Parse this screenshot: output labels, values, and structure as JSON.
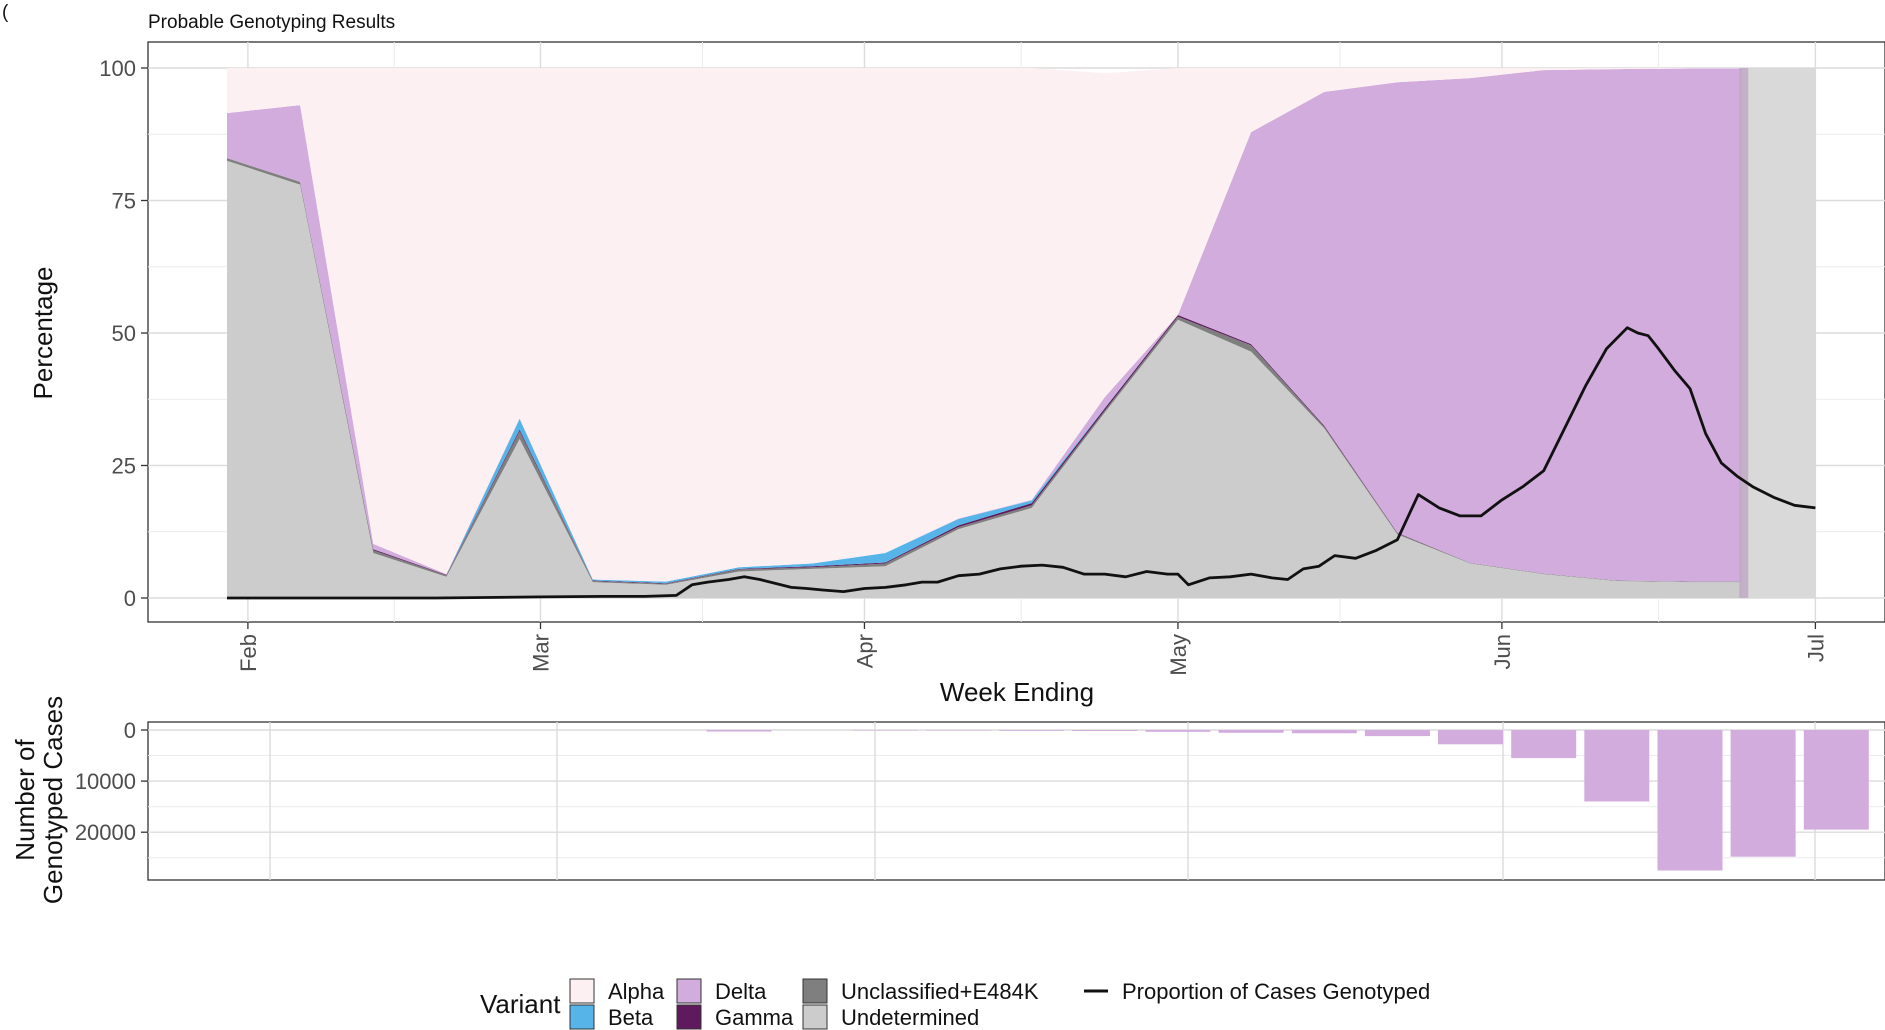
{
  "header_fragment": "(",
  "header_fragment_red": "",
  "chart_data": [
    {
      "type": "area",
      "title": "Probable Genotyping Results",
      "xlabel": "Week Ending",
      "ylabel": "Percentage",
      "ylim": [
        0,
        100
      ],
      "yticks": [
        0,
        25,
        50,
        75,
        100
      ],
      "xticks": [
        {
          "label": "Feb",
          "x": 2.0
        },
        {
          "label": "Mar",
          "x": 30.0
        },
        {
          "label": "Apr",
          "x": 61.0
        },
        {
          "label": "May",
          "x": 91.0
        },
        {
          "label": "Jun",
          "x": 122.0
        },
        {
          "label": "Jul",
          "x": 152.0
        }
      ],
      "x_unit": "days since Jan 30",
      "x": [
        0,
        7,
        14,
        21,
        28,
        35,
        42,
        49,
        56,
        63,
        70,
        77,
        84,
        91,
        98,
        105,
        112,
        119,
        126,
        133,
        140,
        145
      ],
      "series": [
        {
          "name": "Undetermined",
          "color": "#cccccc",
          "values": [
            82.5,
            78,
            8.5,
            4,
            30,
            3,
            2.5,
            5,
            5.5,
            6,
            13,
            17,
            35,
            52.5,
            46.5,
            32,
            12,
            6.5,
            4.5,
            3.2,
            3,
            3
          ]
        },
        {
          "name": "Unclassified+E484K",
          "color": "#7f7f7f",
          "values": [
            0.5,
            0.5,
            0.5,
            0.3,
            1.5,
            0.2,
            0.2,
            0.4,
            0.3,
            0.5,
            0.4,
            0.5,
            0.4,
            0.6,
            1.2,
            0.3,
            0.2,
            0.1,
            0.1,
            0.1,
            0.1,
            0.1
          ]
        },
        {
          "name": "Gamma",
          "color": "#5e1a5c",
          "values": [
            0,
            0,
            0.2,
            0.1,
            0.3,
            0.1,
            0.1,
            0.1,
            0.2,
            0.2,
            0.3,
            0.4,
            0.4,
            0.3,
            0.2,
            0.2,
            0.1,
            0,
            0,
            0,
            0,
            0
          ]
        },
        {
          "name": "Beta",
          "color": "#56b4e9",
          "values": [
            0,
            0,
            0,
            0,
            2,
            0.2,
            0.3,
            0.3,
            0.5,
            1.8,
            1.2,
            0.5,
            0.1,
            0,
            0,
            0,
            0,
            0,
            0,
            0,
            0,
            0
          ]
        },
        {
          "name": "Delta",
          "color": "#d1acdd",
          "values": [
            8.5,
            14.5,
            1,
            0.1,
            0.1,
            0,
            0,
            0,
            0,
            0,
            0.1,
            0.1,
            2,
            0,
            40,
            63,
            85,
            91.5,
            95,
            96.5,
            96.8,
            96.8
          ]
        },
        {
          "name": "Alpha",
          "color": "#fdf0f3",
          "values": [
            8.5,
            7,
            89.8,
            95.5,
            66.1,
            96.5,
            96.9,
            94.2,
            93.5,
            91.5,
            85,
            81.5,
            61.1,
            46.6,
            12.1,
            4.5,
            2.7,
            1.9,
            0.4,
            0.2,
            0.1,
            0.1
          ]
        }
      ],
      "trailing_band": {
        "x_start": 145,
        "x_end": 152,
        "color": "#d9d9d9"
      },
      "line": {
        "name": "Proportion of Cases Genotyped",
        "color": "#111111",
        "x": [
          0,
          10,
          20,
          30,
          36,
          40,
          43,
          44.5,
          46,
          48,
          49.5,
          51,
          54,
          55.5,
          57,
          59,
          61,
          63,
          65,
          66.5,
          68,
          70,
          72,
          74,
          76,
          78,
          80,
          82,
          84,
          86,
          88,
          90,
          91,
          92,
          94,
          96,
          98,
          100,
          101.5,
          103,
          104.5,
          106,
          108,
          110,
          112,
          114,
          116,
          118,
          120,
          122,
          124,
          126,
          128,
          130,
          132,
          134,
          135,
          136,
          137,
          138.5,
          140,
          141.5,
          143,
          144.5,
          146,
          148,
          150,
          152
        ],
        "values": [
          0,
          0,
          0,
          0.2,
          0.3,
          0.3,
          0.5,
          2.5,
          3,
          3.5,
          4,
          3.5,
          2,
          1.8,
          1.5,
          1.2,
          1.8,
          2,
          2.5,
          3,
          3,
          4.2,
          4.5,
          5.5,
          6,
          6.2,
          5.8,
          4.5,
          4.5,
          4,
          5,
          4.5,
          4.5,
          2.5,
          3.8,
          4,
          4.5,
          3.8,
          3.5,
          5.5,
          6,
          8,
          7.5,
          9,
          11,
          19.5,
          17,
          15.5,
          15.5,
          18.5,
          21,
          24,
          32,
          40,
          47,
          51,
          50,
          49.5,
          47,
          43,
          39.5,
          31,
          25.5,
          23,
          21,
          19,
          17.5,
          17
        ]
      },
      "grid": true,
      "legend_position": "bottom"
    },
    {
      "type": "bar",
      "ylabel": "Number of\nGenotyped Cases",
      "ylabel_lines": [
        "Number of",
        "Genotyped Cases"
      ],
      "ylim": [
        0,
        28000
      ],
      "y_inverted": true,
      "yticks": [
        0,
        10000,
        20000
      ],
      "x": [
        49,
        63,
        70,
        77,
        84,
        91,
        98,
        105,
        112,
        119,
        126,
        133,
        140,
        147
      ],
      "values": [
        300,
        100,
        100,
        150,
        200,
        350,
        550,
        650,
        1200,
        2800,
        5500,
        14000,
        27500,
        24800
      ],
      "trailing": {
        "x": 154,
        "value": 19500
      },
      "bar_color": "#d1acdd",
      "grid": true
    }
  ],
  "legend": {
    "title": "Variant",
    "items": [
      {
        "name": "Alpha",
        "color": "#fdf0f3"
      },
      {
        "name": "Beta",
        "color": "#56b4e9"
      },
      {
        "name": "Delta",
        "color": "#d1acdd"
      },
      {
        "name": "Gamma",
        "color": "#5e1a5c"
      },
      {
        "name": "Unclassified+E484K",
        "color": "#7f7f7f"
      },
      {
        "name": "Undetermined",
        "color": "#cccccc"
      }
    ],
    "line_item": "Proportion of Cases Genotyped"
  }
}
